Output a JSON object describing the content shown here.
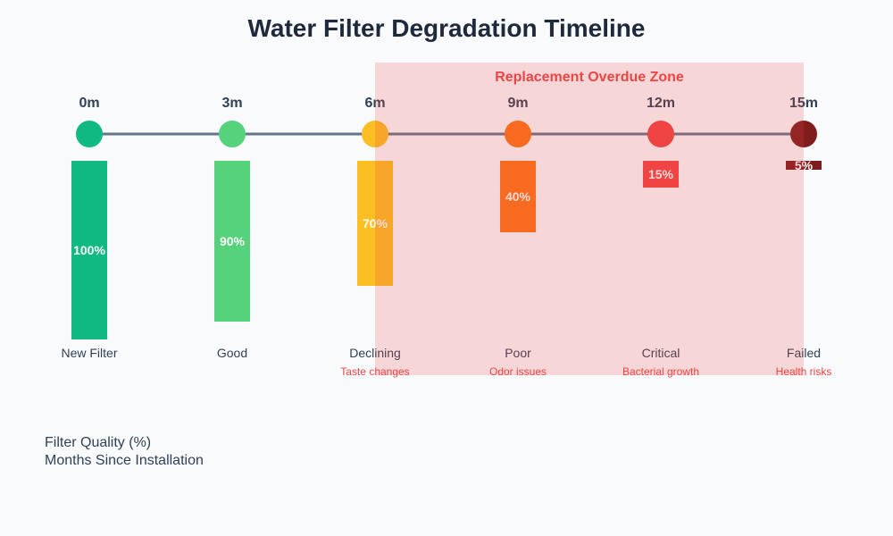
{
  "chart_data": {
    "type": "bar",
    "title": "Water Filter Degradation Timeline",
    "categories": [
      "0m",
      "3m",
      "6m",
      "9m",
      "12m",
      "15m"
    ],
    "stages": [
      "New Filter",
      "Good",
      "Declining",
      "Poor",
      "Critical",
      "Failed"
    ],
    "notes": [
      "",
      "",
      "Taste changes",
      "Odor issues",
      "Bacterial growth",
      "Health risks"
    ],
    "values": [
      100,
      90,
      70,
      40,
      15,
      5
    ],
    "value_labels": [
      "100%",
      "90%",
      "70%",
      "40%",
      "15%",
      "5%"
    ],
    "colors": [
      "#10b981",
      "#55d27a",
      "#fbbf24",
      "#f97316",
      "#ef4444",
      "#7f1d1d"
    ],
    "ylim": [
      0,
      100
    ],
    "zone": {
      "label": "Replacement Overdue Zone",
      "from_index": 2,
      "to_index": 5,
      "color": "#ef4444"
    },
    "legend": [
      "Filter Quality (%)",
      "Months Since Installation"
    ],
    "grid": false
  }
}
